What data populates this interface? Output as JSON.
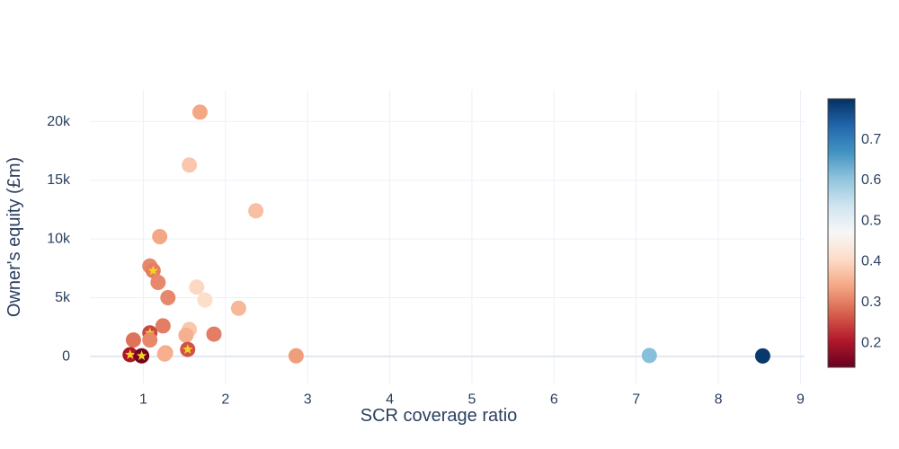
{
  "chart_data": {
    "type": "scatter",
    "title": "",
    "xlabel": "SCR coverage ratio",
    "ylabel": "Owner's equity (£m)",
    "xlim": [
      0.35,
      9.05
    ],
    "ylim": [
      -2300,
      22700
    ],
    "xticks": [
      1,
      2,
      3,
      4,
      5,
      6,
      7,
      8,
      9
    ],
    "xtick_labels": [
      "1",
      "2",
      "3",
      "4",
      "5",
      "6",
      "7",
      "8",
      "9"
    ],
    "yticks": [
      0,
      5000,
      10000,
      15000,
      20000
    ],
    "ytick_labels": [
      "0",
      "5k",
      "10k",
      "15k",
      "20k"
    ],
    "grid": true,
    "colorscale": "RdBu",
    "color_range": [
      0.14,
      0.8
    ],
    "colorbar_ticks": [
      0.2,
      0.3,
      0.4,
      0.5,
      0.6,
      0.7
    ],
    "colorbar_tick_labels": [
      "0.2",
      "0.3",
      "0.4",
      "0.5",
      "0.6",
      "0.7"
    ],
    "points": [
      {
        "x": 1.69,
        "y": 20800,
        "c": 0.34,
        "star": false
      },
      {
        "x": 1.56,
        "y": 16300,
        "c": 0.38,
        "star": false
      },
      {
        "x": 2.37,
        "y": 12400,
        "c": 0.37,
        "star": false
      },
      {
        "x": 1.2,
        "y": 10200,
        "c": 0.34,
        "star": false
      },
      {
        "x": 1.08,
        "y": 7700,
        "c": 0.31,
        "star": false
      },
      {
        "x": 1.12,
        "y": 7300,
        "c": 0.3,
        "star": true
      },
      {
        "x": 1.18,
        "y": 6300,
        "c": 0.31,
        "star": false
      },
      {
        "x": 1.65,
        "y": 5900,
        "c": 0.4,
        "star": false
      },
      {
        "x": 1.3,
        "y": 5000,
        "c": 0.31,
        "star": false
      },
      {
        "x": 1.75,
        "y": 4800,
        "c": 0.41,
        "star": false
      },
      {
        "x": 2.16,
        "y": 4100,
        "c": 0.36,
        "star": false
      },
      {
        "x": 1.24,
        "y": 2600,
        "c": 0.3,
        "star": false
      },
      {
        "x": 1.56,
        "y": 2300,
        "c": 0.38,
        "star": false
      },
      {
        "x": 1.08,
        "y": 2000,
        "c": 0.25,
        "star": true
      },
      {
        "x": 1.86,
        "y": 1900,
        "c": 0.3,
        "star": false
      },
      {
        "x": 1.52,
        "y": 1800,
        "c": 0.35,
        "star": false
      },
      {
        "x": 0.88,
        "y": 1400,
        "c": 0.29,
        "star": false
      },
      {
        "x": 1.08,
        "y": 1400,
        "c": 0.31,
        "star": false
      },
      {
        "x": 1.54,
        "y": 600,
        "c": 0.26,
        "star": true
      },
      {
        "x": 1.27,
        "y": 300,
        "c": 0.34,
        "star": false
      },
      {
        "x": 1.26,
        "y": 200,
        "c": 0.35,
        "star": false
      },
      {
        "x": 0.84,
        "y": 150,
        "c": 0.2,
        "star": true
      },
      {
        "x": 0.98,
        "y": 50,
        "c": 0.15,
        "star": true
      },
      {
        "x": 2.86,
        "y": 50,
        "c": 0.33,
        "star": false
      },
      {
        "x": 7.16,
        "y": 80,
        "c": 0.61,
        "star": false
      },
      {
        "x": 8.54,
        "y": 40,
        "c": 0.79,
        "star": false
      }
    ]
  }
}
